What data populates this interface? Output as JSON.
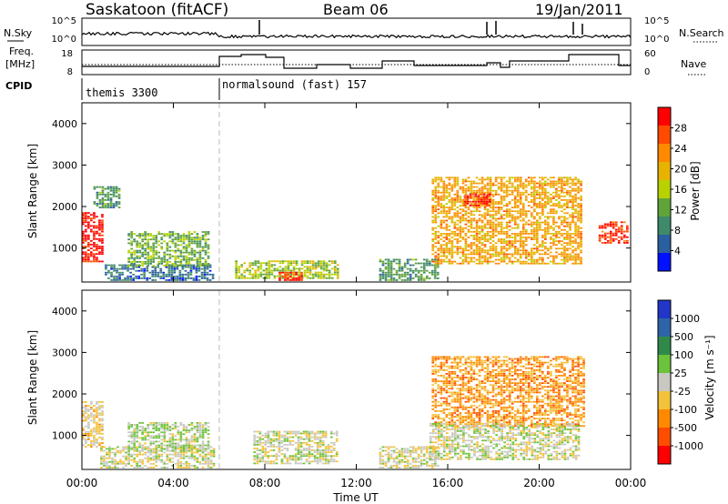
{
  "header": {
    "title": "Saskatoon (fitACF)",
    "beam": "Beam 06",
    "date": "19/Jan/2011"
  },
  "left_labels": {
    "nsky": "N.Sky",
    "freq_line1": "Freq.",
    "freq_line2": "[MHz]",
    "cpid": "CPID",
    "nsky_ticks": [
      "10^5",
      "10^0"
    ],
    "freq_ticks": [
      "18",
      "8"
    ]
  },
  "right_labels": {
    "nsearch": "N.Search",
    "nave": "Nave",
    "nsearch_ticks": [
      "10^5",
      "10^0"
    ],
    "nave_ticks": [
      "60",
      "0"
    ]
  },
  "cpid_segments": [
    {
      "label": "themis 3300",
      "start_hour": 0,
      "end_hour": 6
    },
    {
      "label": "normalsound (fast) 157",
      "start_hour": 6,
      "end_hour": 24
    }
  ],
  "axes": {
    "xlabel": "Time UT",
    "x_ticks": [
      "00:00",
      "04:00",
      "08:00",
      "12:00",
      "16:00",
      "20:00",
      "00:00"
    ],
    "y_ticks": [
      "1000",
      "2000",
      "3000",
      "4000"
    ],
    "ylabel_top": "Slant Range [km]",
    "ylabel_bottom": "Slant Range [km]"
  },
  "power_colorbar": {
    "label": "Power [dB]",
    "ticks": [
      "28",
      "24",
      "20",
      "16",
      "12",
      "8",
      "4"
    ],
    "colors": [
      "#ff0000",
      "#ff4a00",
      "#ff8a00",
      "#e6b400",
      "#b7d200",
      "#5fa33a",
      "#3f8a6a",
      "#2a5fa0",
      "#0011ff"
    ]
  },
  "velocity_colorbar": {
    "label": "Velocity [m s⁻¹]",
    "ticks": [
      "1000",
      "500",
      "100",
      "25",
      "-25",
      "-100",
      "-500",
      "-1000"
    ],
    "colors": [
      "#2236c8",
      "#2e64a8",
      "#2f8a4a",
      "#6cc23a",
      "#c8c8c0",
      "#f2c23a",
      "#ff8a00",
      "#ff4d00",
      "#ff0000"
    ]
  },
  "chart_data": {
    "type": "heatmap",
    "title": "Saskatoon (fitACF)",
    "xlabel": "Time UT",
    "ylabel": "Slant Range [km]",
    "x_range_hours": [
      0,
      24
    ],
    "y_range_km": [
      180,
      4500
    ],
    "panels": [
      {
        "name": "Power [dB]",
        "scale": [
          0,
          30
        ],
        "regions": [
          {
            "t0": 0.0,
            "t1": 0.9,
            "r0": 650,
            "r1": 1850,
            "value": 28
          },
          {
            "t0": 0.5,
            "t1": 1.6,
            "r0": 1950,
            "r1": 2450,
            "value": 10
          },
          {
            "t0": 1.0,
            "t1": 5.8,
            "r0": 200,
            "r1": 600,
            "value": 6
          },
          {
            "t0": 2.0,
            "t1": 5.6,
            "r0": 550,
            "r1": 1400,
            "value": 12
          },
          {
            "t0": 6.7,
            "t1": 11.2,
            "r0": 250,
            "r1": 700,
            "value": 14
          },
          {
            "t0": 8.6,
            "t1": 9.6,
            "r0": 200,
            "r1": 400,
            "value": 26
          },
          {
            "t0": 13.0,
            "t1": 15.6,
            "r0": 200,
            "r1": 700,
            "value": 10
          },
          {
            "t0": 15.3,
            "t1": 21.9,
            "r0": 600,
            "r1": 2700,
            "value": 20
          },
          {
            "t0": 16.7,
            "t1": 17.8,
            "r0": 2000,
            "r1": 2300,
            "value": 27
          },
          {
            "t0": 22.6,
            "t1": 23.9,
            "r0": 1100,
            "r1": 1600,
            "value": 26
          }
        ]
      },
      {
        "name": "Velocity [m s⁻¹]",
        "scale": [
          -1000,
          1000
        ],
        "regions": [
          {
            "t0": 0.0,
            "t1": 0.9,
            "r0": 700,
            "r1": 1800,
            "value": -150
          },
          {
            "t0": 0.8,
            "t1": 5.8,
            "r0": 200,
            "r1": 700,
            "value": -50
          },
          {
            "t0": 2.0,
            "t1": 5.6,
            "r0": 600,
            "r1": 1300,
            "value": 80
          },
          {
            "t0": 7.5,
            "t1": 11.2,
            "r0": 300,
            "r1": 1100,
            "value": 0
          },
          {
            "t0": 13.0,
            "t1": 15.6,
            "r0": 200,
            "r1": 700,
            "value": -60
          },
          {
            "t0": 15.3,
            "t1": 22.0,
            "r0": 1200,
            "r1": 2900,
            "value": -400
          },
          {
            "t0": 15.2,
            "t1": 21.8,
            "r0": 400,
            "r1": 1300,
            "value": 0
          }
        ]
      }
    ]
  }
}
